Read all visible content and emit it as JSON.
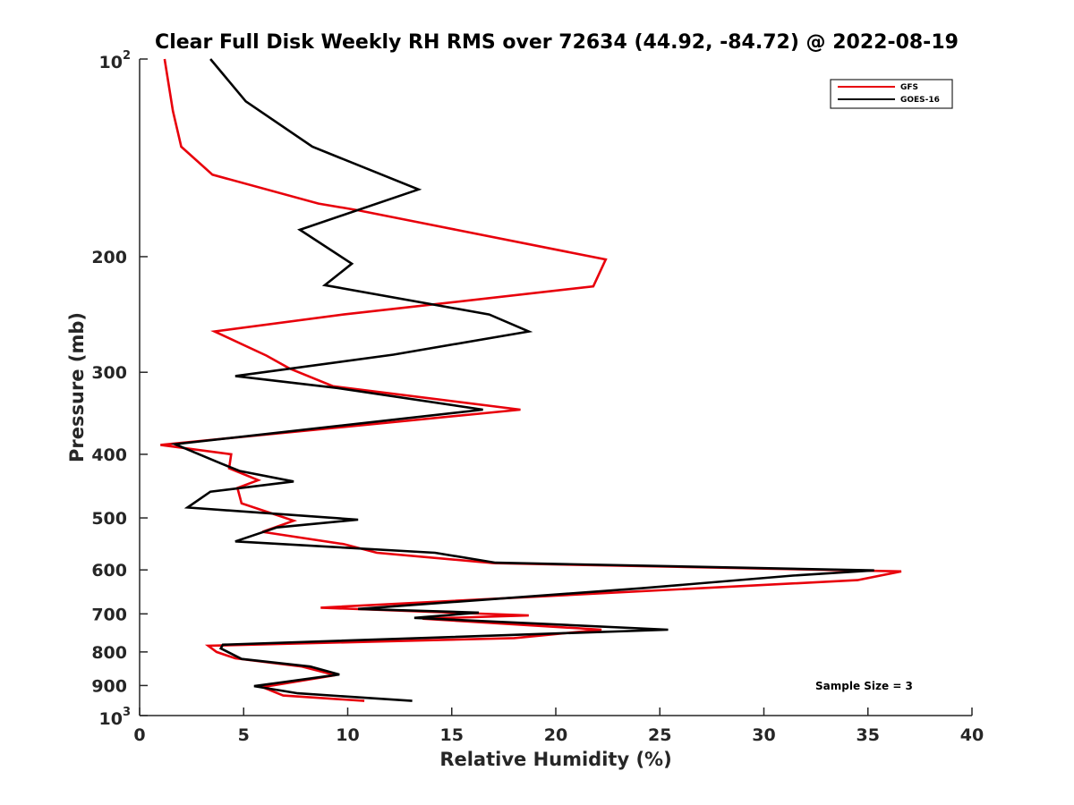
{
  "chart_data": {
    "type": "line",
    "title": "Clear Full Disk Weekly RH RMS over 72634 (44.92, -84.72) @ 2022-08-19",
    "xlabel": "Relative Humidity (%)",
    "ylabel": "Pressure (mb)",
    "xlim": [
      0,
      40
    ],
    "ylim": [
      100,
      1000
    ],
    "yscale": "log",
    "yreverse": true,
    "xticks": [
      0,
      5,
      10,
      15,
      20,
      25,
      30,
      35,
      40
    ],
    "xtick_labels": [
      "0",
      "5",
      "10",
      "15",
      "20",
      "25",
      "30",
      "35",
      "40"
    ],
    "yticks": [
      200,
      300,
      400,
      500,
      600,
      700,
      800,
      900
    ],
    "ytick_labels": [
      "200",
      "300",
      "400",
      "500",
      "600",
      "700",
      "800",
      "900"
    ],
    "ytick_top": {
      "base": "10",
      "exp": "2"
    },
    "ytick_bottom": {
      "base": "10",
      "exp": "3"
    },
    "legend_position": "top-right",
    "annotation": "Sample Size = 3",
    "series": [
      {
        "name": "GFS",
        "color": "#e8000b",
        "points": [
          [
            1.2,
            100
          ],
          [
            1.6,
            120
          ],
          [
            2.0,
            136
          ],
          [
            3.5,
            150
          ],
          [
            8.6,
            166
          ],
          [
            10.5,
            170
          ],
          [
            22.4,
            202
          ],
          [
            21.8,
            222
          ],
          [
            9.8,
            245
          ],
          [
            3.6,
            260
          ],
          [
            6.1,
            283
          ],
          [
            7.2,
            296
          ],
          [
            9.3,
            315
          ],
          [
            18.3,
            342
          ],
          [
            1.0,
            387
          ],
          [
            4.4,
            400
          ],
          [
            4.3,
            420
          ],
          [
            5.7,
            438
          ],
          [
            4.7,
            450
          ],
          [
            4.9,
            475
          ],
          [
            7.4,
            505
          ],
          [
            5.9,
            525
          ],
          [
            9.8,
            548
          ],
          [
            11.4,
            565
          ],
          [
            17.0,
            586
          ],
          [
            36.6,
            603
          ],
          [
            34.5,
            622
          ],
          [
            8.7,
            685
          ],
          [
            18.7,
            704
          ],
          [
            13.6,
            712
          ],
          [
            22.2,
            740
          ],
          [
            18.0,
            762
          ],
          [
            3.3,
            783
          ],
          [
            3.7,
            800
          ],
          [
            4.6,
            818
          ],
          [
            7.8,
            842
          ],
          [
            9.4,
            868
          ],
          [
            5.9,
            905
          ],
          [
            6.9,
            932
          ],
          [
            10.8,
            950
          ]
        ]
      },
      {
        "name": "GOES-16",
        "color": "#000000",
        "points": [
          [
            3.4,
            100
          ],
          [
            5.1,
            116
          ],
          [
            8.3,
            136
          ],
          [
            13.4,
            158
          ],
          [
            7.7,
            182
          ],
          [
            10.2,
            205
          ],
          [
            8.9,
            221
          ],
          [
            16.8,
            245
          ],
          [
            18.7,
            260
          ],
          [
            12.2,
            282
          ],
          [
            4.6,
            304
          ],
          [
            9.5,
            317
          ],
          [
            16.5,
            342
          ],
          [
            1.7,
            386
          ],
          [
            3.9,
            413
          ],
          [
            4.8,
            424
          ],
          [
            7.4,
            440
          ],
          [
            3.4,
            456
          ],
          [
            2.3,
            482
          ],
          [
            10.5,
            503
          ],
          [
            6.6,
            517
          ],
          [
            4.6,
            543
          ],
          [
            14.2,
            565
          ],
          [
            17.1,
            585
          ],
          [
            35.3,
            601
          ],
          [
            31.4,
            612
          ],
          [
            24.1,
            640
          ],
          [
            10.5,
            688
          ],
          [
            16.3,
            697
          ],
          [
            13.2,
            710
          ],
          [
            25.4,
            740
          ],
          [
            4.0,
            780
          ],
          [
            3.9,
            790
          ],
          [
            4.9,
            820
          ],
          [
            8.2,
            842
          ],
          [
            9.6,
            866
          ],
          [
            5.5,
            902
          ],
          [
            7.6,
            925
          ],
          [
            13.1,
            950
          ]
        ]
      }
    ]
  }
}
